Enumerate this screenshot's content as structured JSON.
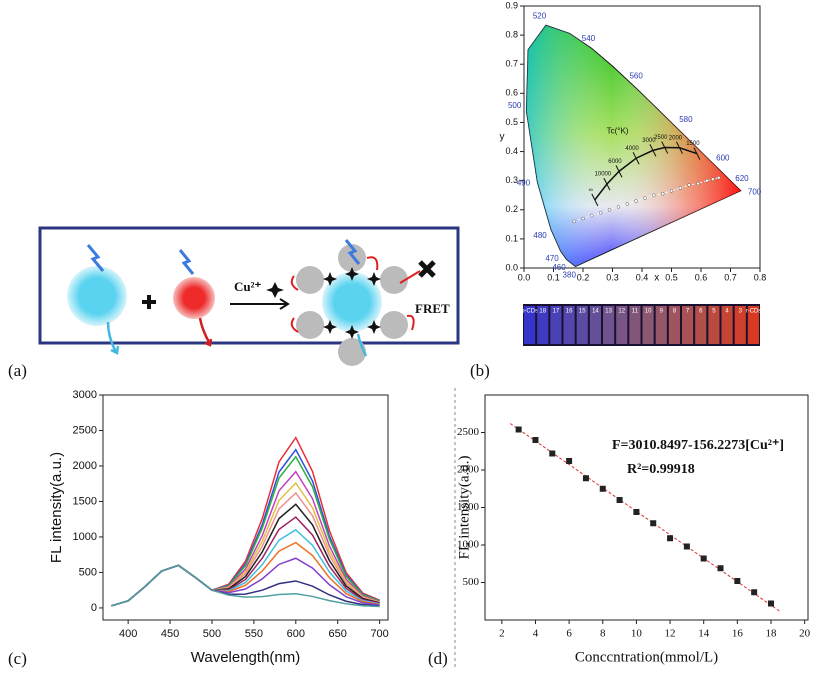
{
  "panel_labels": [
    "(a)",
    "(b)",
    "(c)",
    "(d)"
  ],
  "diagram": {
    "ion": "Cu²⁺",
    "fret": "FRET"
  },
  "vials": [
    "b-CDs",
    "18",
    "17",
    "16",
    "15",
    "14",
    "13",
    "12",
    "11",
    "10",
    "9",
    "8",
    "7",
    "6",
    "5",
    "4",
    "3",
    "r-CDs"
  ],
  "chart_data": [
    {
      "type": "cie",
      "x_label": "x",
      "y_label": "y",
      "xlim": [
        0,
        0.8
      ],
      "ylim": [
        0,
        0.9
      ],
      "xticks": [
        {
          "value": 0,
          "label": "0.0"
        },
        0.1,
        0.2,
        0.3,
        0.4,
        0.5,
        0.6,
        0.7,
        0.8
      ],
      "yticks": [
        {
          "value": 0,
          "label": "0.0"
        },
        0.1,
        0.2,
        0.3,
        0.4,
        0.5,
        0.6,
        0.7,
        0.8,
        0.9
      ],
      "locus": {
        "labels": [
          "380",
          "460",
          "470",
          "480",
          "490",
          "500",
          null,
          "520",
          null,
          "540",
          null,
          "560",
          null,
          "580",
          null,
          "600",
          null,
          "620",
          "700"
        ],
        "x": [
          0.1741,
          0.144,
          0.1241,
          0.0913,
          0.0454,
          0.0082,
          0.0139,
          0.0743,
          0.1547,
          0.2296,
          0.3016,
          0.3731,
          0.4441,
          0.5125,
          0.5752,
          0.627,
          0.6658,
          0.6915,
          0.7347
        ],
        "y": [
          0.005,
          0.0297,
          0.0578,
          0.1327,
          0.295,
          0.5384,
          0.7502,
          0.8338,
          0.8059,
          0.7543,
          0.6923,
          0.6245,
          0.5547,
          0.4866,
          0.4242,
          0.3725,
          0.334,
          0.3083,
          0.2653
        ]
      },
      "planckian": {
        "title": "Tc(°K)",
        "labels": [
          "∞",
          "10000",
          "6000",
          "4000",
          "3000",
          "2500",
          "2000",
          "1500"
        ],
        "x": [
          0.24,
          0.281,
          0.322,
          0.38,
          0.437,
          0.477,
          0.527,
          0.586
        ],
        "y": [
          0.234,
          0.288,
          0.332,
          0.377,
          0.404,
          0.414,
          0.413,
          0.393
        ]
      },
      "samples": {
        "x": [
          0.17,
          0.2,
          0.23,
          0.26,
          0.29,
          0.32,
          0.35,
          0.38,
          0.41,
          0.44,
          0.47,
          0.5,
          0.53,
          0.56,
          0.59,
          0.62,
          0.64,
          0.66
        ],
        "y": [
          0.16,
          0.17,
          0.18,
          0.19,
          0.2,
          0.21,
          0.22,
          0.23,
          0.24,
          0.25,
          0.255,
          0.265,
          0.275,
          0.285,
          0.29,
          0.3,
          0.305,
          0.31
        ]
      }
    },
    {
      "type": "line",
      "x_label": "Wavelength(nm)",
      "y_label": "FL intensity(a.u.)",
      "xlim": [
        370,
        710
      ],
      "ylim": [
        -170,
        3000
      ],
      "xticks": [
        400,
        450,
        500,
        550,
        600,
        650,
        700
      ],
      "yticks": [
        0,
        500,
        1000,
        1500,
        2000,
        2500,
        3000
      ],
      "x": [
        380,
        400,
        420,
        440,
        460,
        480,
        500,
        520,
        540,
        560,
        580,
        600,
        620,
        640,
        660,
        680,
        700
      ],
      "series": [
        {
          "color": "#e8303a",
          "values": [
            30,
            100,
            300,
            520,
            600,
            430,
            250,
            334,
            658,
            1260,
            2059,
            2400,
            1922,
            1093,
            498,
            207,
            109
          ]
        },
        {
          "color": "#3050e0",
          "values": [
            30,
            100,
            300,
            520,
            600,
            430,
            250,
            322,
            619,
            1175,
            1915,
            2230,
            1786,
            1017,
            464,
            194,
            102
          ]
        },
        {
          "color": "#30b040",
          "values": [
            30,
            100,
            300,
            520,
            600,
            430,
            250,
            315,
            596,
            1125,
            1830,
            2130,
            1706,
            972,
            444,
            186,
            98
          ]
        },
        {
          "color": "#c040c0",
          "values": [
            30,
            100,
            300,
            520,
            600,
            430,
            250,
            300,
            548,
            1020,
            1651,
            1920,
            1538,
            877,
            402,
            169,
            89
          ]
        },
        {
          "color": "#e0c040",
          "values": [
            30,
            100,
            300,
            520,
            600,
            430,
            250,
            289,
            511,
            940,
            1515,
            1760,
            1410,
            805,
            370,
            156,
            83
          ]
        },
        {
          "color": "#f09090",
          "values": [
            30,
            100,
            300,
            520,
            600,
            430,
            250,
            279,
            479,
            870,
            1396,
            1620,
            1298,
            742,
            342,
            145,
            77
          ]
        },
        {
          "color": "#202020",
          "values": [
            30,
            100,
            300,
            520,
            600,
            430,
            250,
            268,
            442,
            790,
            1260,
            1460,
            1170,
            670,
            310,
            132,
            71
          ]
        },
        {
          "color": "#a02060",
          "values": [
            30,
            100,
            300,
            520,
            600,
            430,
            250,
            255,
            401,
            700,
            1107,
            1280,
            1026,
            589,
            274,
            118,
            64
          ]
        },
        {
          "color": "#40c0e0",
          "values": [
            30,
            100,
            300,
            520,
            600,
            430,
            250,
            243,
            359,
            610,
            954,
            1100,
            882,
            508,
            238,
            103,
            57
          ]
        },
        {
          "color": "#f07020",
          "values": [
            30,
            100,
            300,
            520,
            600,
            430,
            250,
            230,
            318,
            520,
            801,
            920,
            738,
            427,
            202,
            89,
            49
          ]
        },
        {
          "color": "#8040d0",
          "values": [
            30,
            100,
            300,
            520,
            600,
            430,
            250,
            215,
            267,
            410,
            614,
            700,
            562,
            328,
            158,
            71,
            41
          ]
        },
        {
          "color": "#303080",
          "values": [
            30,
            100,
            300,
            520,
            600,
            430,
            250,
            192,
            194,
            250,
            342,
            380,
            306,
            184,
            94,
            46,
            28
          ]
        },
        {
          "color": "#50a0a0",
          "values": [
            30,
            100,
            300,
            520,
            600,
            430,
            250,
            180,
            152,
            160,
            189,
            200,
            162,
            103,
            58,
            31,
            21
          ]
        }
      ]
    },
    {
      "type": "scatter",
      "x_label": "Conccntration(mmol/L)",
      "y_label": "FL intensity(a.u.)",
      "equation": "F=3010.8497-156.2273[Cu²⁺]",
      "r_squared": "R²=0.99918",
      "xlim": [
        1,
        20.2
      ],
      "ylim": [
        0,
        3000
      ],
      "xticks": [
        2,
        4,
        6,
        8,
        10,
        12,
        14,
        16,
        18,
        20
      ],
      "yticks": [
        500,
        1000,
        1500,
        2000,
        2500
      ],
      "color": "#222222",
      "fit_color": "#e03030",
      "x": [
        3,
        4,
        5,
        6,
        7,
        8,
        9,
        10,
        11,
        12,
        13,
        14,
        15,
        16,
        17,
        18
      ],
      "values": [
        2540,
        2400,
        2220,
        2120,
        1890,
        1750,
        1600,
        1440,
        1290,
        1090,
        980,
        820,
        690,
        520,
        370,
        220
      ],
      "fit": {
        "x": [
          2.5,
          18.5
        ],
        "values": [
          2620,
          120
        ]
      }
    }
  ]
}
